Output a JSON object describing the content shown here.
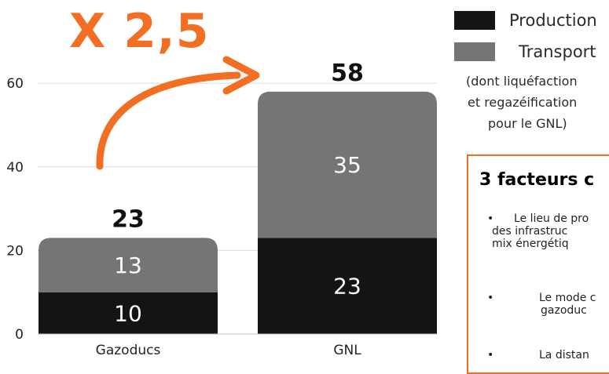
{
  "chart_data": {
    "type": "bar",
    "stacked": true,
    "categories": [
      "Gazoducs",
      "GNL"
    ],
    "series": [
      {
        "name": "Production",
        "values": [
          10,
          23
        ],
        "color": "#141414"
      },
      {
        "name": "Transport",
        "values": [
          13,
          35
        ],
        "color": "#757575"
      }
    ],
    "totals": [
      23,
      58
    ],
    "ylim": [
      0,
      65
    ],
    "yticks": [
      0,
      20,
      40,
      60
    ],
    "grid": true,
    "legend_position": "top-right"
  },
  "annotation": {
    "multiplier_text": "X 2,5",
    "color": "#f26e22"
  },
  "legend": {
    "items": [
      {
        "label": "Production",
        "color": "#141414"
      },
      {
        "label": "Transport",
        "color": "#757575"
      }
    ],
    "note_lines": [
      "(dont liquéfaction",
      "et regazéification",
      "pour le GNL)"
    ]
  },
  "factors": {
    "title": "3 facteurs c",
    "border_color": "#f26e22",
    "items": [
      {
        "lines": [
          "Le lieu de pro",
          "des infrastruc",
          "mix énergétiq"
        ]
      },
      {
        "lines": [
          "Le mode c",
          "gazoduc"
        ]
      },
      {
        "lines": [
          "La distan"
        ]
      }
    ]
  }
}
